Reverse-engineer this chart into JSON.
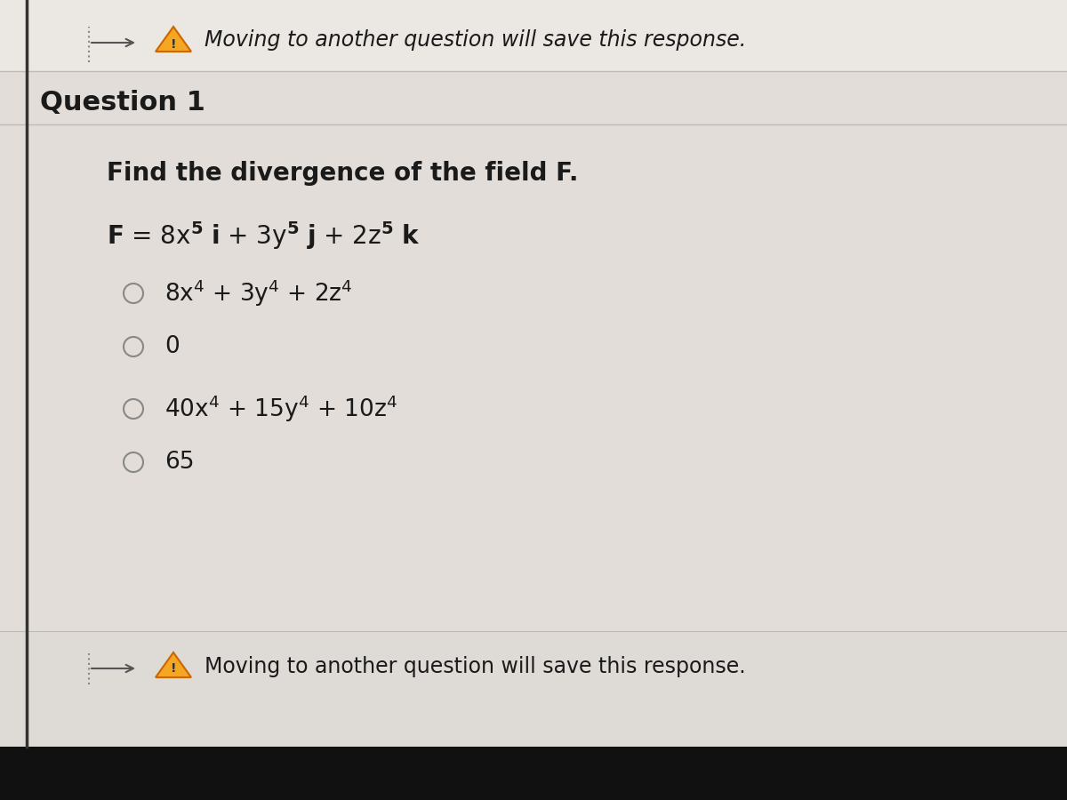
{
  "bg_color_top": "#e8e4e0",
  "bg_color_main": "#e2ddd8",
  "bg_color_bottom": "#d8d4cf",
  "bg_dark_bottom": "#1a1a1a",
  "top_warning_text": "Moving to another question will save this response.",
  "question_label": "Question 1",
  "question_text": "Find the divergence of the field F.",
  "bottom_warning_text": "Moving to another question will save this response.",
  "warning_color": "#e6a817",
  "text_color": "#1a1a1a",
  "radio_color": "#888888",
  "font_size_warning": 17,
  "font_size_question_label": 22,
  "font_size_question_text": 20,
  "font_size_equation": 20,
  "font_size_options": 19,
  "separator_color": "#c0bab4",
  "left_border_color": "#1a1a1a",
  "arrow_color": "#555555",
  "dotted_color": "#888888"
}
